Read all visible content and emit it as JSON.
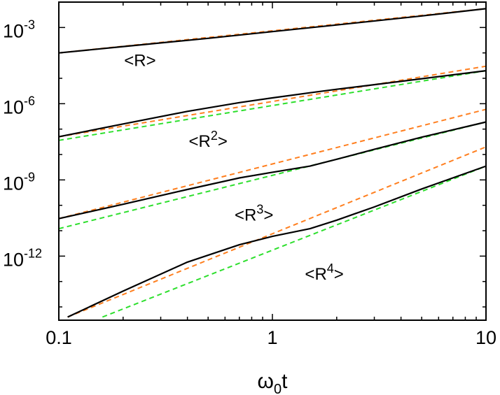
{
  "chart_data": {
    "type": "line",
    "title": "",
    "xlabel": {
      "base": "ω",
      "sub": "0",
      "rest": "t"
    },
    "ylabel": "",
    "x_scale": "log",
    "y_scale": "log",
    "xlim": [
      0.1,
      10
    ],
    "ylim": [
      3e-15,
      0.01
    ],
    "grid": false,
    "legend": "none",
    "x_ticks": [
      {
        "value": 0.1,
        "label": "0.1"
      },
      {
        "value": 1,
        "label": "1"
      },
      {
        "value": 10,
        "label": "10"
      }
    ],
    "y_ticks": [
      {
        "value": 0.001,
        "base": "10",
        "exp": "-3"
      },
      {
        "value": 1e-06,
        "base": "10",
        "exp": "-6"
      },
      {
        "value": 1e-09,
        "base": "10",
        "exp": "-9"
      },
      {
        "value": 1e-12,
        "base": "10",
        "exp": "-12"
      }
    ],
    "colors": {
      "exact": "#000000",
      "short_time": "#ff7f1f",
      "long_time": "#2ddf2d"
    },
    "series": [
      {
        "group": "R1",
        "style": "exact",
        "color": "#000000",
        "x": [
          0.1,
          0.2,
          0.5,
          1,
          2,
          5,
          10
        ],
        "y": [
          0.0001,
          0.000178,
          0.000376,
          0.00069,
          0.00126,
          0.00286,
          0.0055
        ]
      },
      {
        "group": "R1",
        "style": "short_time",
        "color": "#ff7f1f",
        "x": [
          0.1,
          10
        ],
        "y": [
          0.0001,
          0.0055
        ]
      },
      {
        "group": "R2",
        "style": "exact",
        "color": "#000000",
        "x": [
          0.1,
          0.2,
          0.4,
          0.7,
          1,
          1.5,
          2,
          3,
          5,
          10
        ],
        "y": [
          5e-08,
          1.6e-07,
          5e-07,
          1.1e-06,
          1.7e-06,
          2.7e-06,
          3.7e-06,
          5.6e-06,
          9.6e-06,
          2e-05
        ]
      },
      {
        "group": "R2",
        "style": "short_time",
        "color": "#ff7f1f",
        "x": [
          0.1,
          10
        ],
        "y": [
          5e-08,
          3e-05
        ]
      },
      {
        "group": "R2",
        "style": "long_time",
        "color": "#2ddf2d",
        "x": [
          0.1,
          10
        ],
        "y": [
          3.6e-08,
          2e-05
        ]
      },
      {
        "group": "R3",
        "style": "exact",
        "color": "#000000",
        "x": [
          0.1,
          0.2,
          0.4,
          0.7,
          1,
          1.5,
          2,
          3,
          5,
          10
        ],
        "y": [
          3e-11,
          1.1e-10,
          4.2e-10,
          1.2e-09,
          2e-09,
          3.5e-09,
          6.5e-09,
          1.6e-08,
          4.8e-08,
          1.9e-07
        ]
      },
      {
        "group": "R3",
        "style": "short_time",
        "color": "#ff7f1f",
        "x": [
          0.1,
          10
        ],
        "y": [
          3e-11,
          6e-07
        ]
      },
      {
        "group": "R3",
        "style": "long_time",
        "color": "#2ddf2d",
        "x": [
          0.1,
          10
        ],
        "y": [
          1.2e-11,
          1.9e-07
        ]
      },
      {
        "group": "R4",
        "style": "exact",
        "color": "#000000",
        "x": [
          0.11,
          0.2,
          0.4,
          0.7,
          1,
          1.5,
          2,
          3,
          5,
          10
        ],
        "y": [
          4e-15,
          4.2e-14,
          5.8e-13,
          2.8e-12,
          6e-12,
          1.2e-11,
          2.6e-11,
          8.6e-11,
          4.4e-10,
          3.5e-09
        ]
      },
      {
        "group": "R4",
        "style": "short_time",
        "color": "#ff7f1f",
        "x": [
          0.11,
          10
        ],
        "y": [
          4e-15,
          2e-08
        ]
      },
      {
        "group": "R4",
        "style": "long_time",
        "color": "#2ddf2d",
        "x": [
          0.16,
          10
        ],
        "y": [
          4e-15,
          3.5e-09
        ]
      }
    ],
    "annotations": [
      {
        "base": "<R",
        "exp": "",
        "close": ">",
        "x": 0.24,
        "y": 3e-05
      },
      {
        "base": "<R",
        "exp": "2",
        "close": ">",
        "x": 0.5,
        "y": 2e-08
      },
      {
        "base": "<R",
        "exp": "3",
        "close": ">",
        "x": 0.82,
        "y": 2.5e-11
      },
      {
        "base": "<R",
        "exp": "4",
        "close": ">",
        "x": 1.75,
        "y": 1.2e-13
      }
    ]
  }
}
